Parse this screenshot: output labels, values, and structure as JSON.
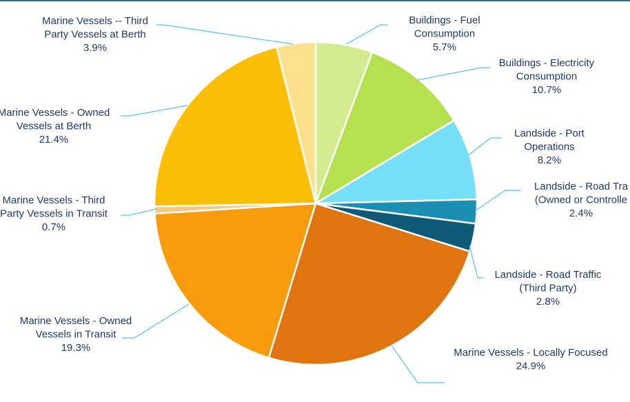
{
  "chart_data": {
    "type": "pie",
    "title": "",
    "start_angle_deg": 0,
    "direction": "clockwise",
    "slices": [
      {
        "name": "Buildings - Fuel Consumption",
        "label_lines": [
          "Buildings - Fuel",
          "Consumption",
          "5.7%"
        ],
        "value": 5.7,
        "color": "#d4ea8e"
      },
      {
        "name": "Buildings - Electricity Consumption",
        "label_lines": [
          "Buildings - Electricity",
          "Consumption",
          "10.7%"
        ],
        "value": 10.7,
        "color": "#b5e04f"
      },
      {
        "name": "Landside - Port Operations",
        "label_lines": [
          "Landside - Port",
          "Operations",
          "8.2%"
        ],
        "value": 8.2,
        "color": "#76dff8"
      },
      {
        "name": "Landside - Road Traffic (Owned or Controlled)",
        "label_lines": [
          "Landside - Road Tra",
          "(Owned or Controlle",
          "2.4%"
        ],
        "value": 2.4,
        "color": "#1a8fb3"
      },
      {
        "name": "Landside - Road Traffic (Third Party)",
        "label_lines": [
          "Landside - Road Traffic",
          "(Third Party)",
          "2.8%"
        ],
        "value": 2.8,
        "color": "#0f5b77"
      },
      {
        "name": "Marine Vessels - Locally Focused",
        "label_lines": [
          "Marine Vessels - Locally Focused",
          "24.9%"
        ],
        "value": 24.9,
        "color": "#e0740e"
      },
      {
        "name": "Marine Vessels - Owned Vessels in Transit",
        "label_lines": [
          "Marine Vessels - Owned",
          "Vessels in Transit",
          "19.3%"
        ],
        "value": 19.3,
        "color": "#f89c0e"
      },
      {
        "name": "Marine Vessels - Third Party Vessels in Transit",
        "label_lines": [
          "Marine Vessels - Third",
          "Party Vessels in Transit",
          "0.7%"
        ],
        "value": 0.7,
        "color": "#fcc77a"
      },
      {
        "name": "Marine Vessels - Owned Vessels at Berth",
        "label_lines": [
          "Marine Vessels - Owned",
          "Vessels at Berth",
          "21.4%"
        ],
        "value": 21.4,
        "color": "#fcbf08"
      },
      {
        "name": "Marine Vessels -- Third Party Vessels at Berth",
        "label_lines": [
          "Marine Vessels -- Third",
          "Party Vessels at Berth",
          "3.9%"
        ],
        "value": 3.9,
        "color": "#fde08e"
      }
    ]
  }
}
